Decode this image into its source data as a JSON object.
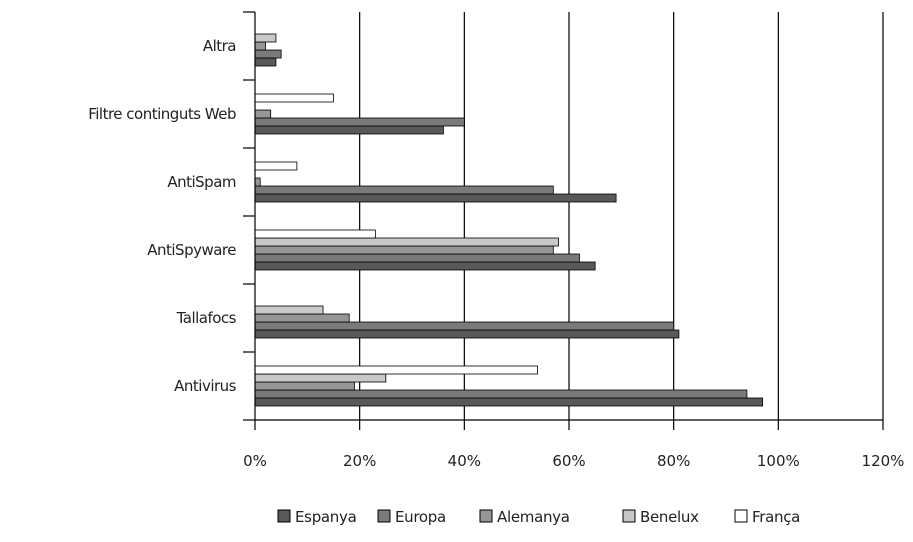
{
  "chart_data": {
    "type": "bar",
    "orientation": "horizontal",
    "title": "",
    "xlabel": "",
    "ylabel": "",
    "categories": [
      "Altra",
      "Filtre continguts Web",
      "AntiSpam",
      "AntiSpyware",
      "Tallafocs",
      "Antivirus"
    ],
    "series": [
      {
        "name": "Espanya",
        "color": "#595959",
        "values": [
          4,
          36,
          69,
          65,
          81,
          97
        ]
      },
      {
        "name": "Europa",
        "color": "#7a7a7a",
        "values": [
          5,
          40,
          57,
          62,
          80,
          94
        ]
      },
      {
        "name": "Alemanya",
        "color": "#969696",
        "values": [
          2,
          3,
          1,
          57,
          18,
          19
        ]
      },
      {
        "name": "Benelux",
        "color": "#c8c8c8",
        "values": [
          4,
          0,
          0,
          58,
          13,
          25
        ]
      },
      {
        "name": "França",
        "color": "#ffffff",
        "values": [
          0,
          15,
          8,
          23,
          0,
          54
        ]
      }
    ],
    "xlim": [
      0,
      120
    ],
    "xticks": [
      0,
      20,
      40,
      60,
      80,
      100,
      120
    ],
    "tick_labels": [
      "0%",
      "20%",
      "40%",
      "60%",
      "80%",
      "100%",
      "120%"
    ],
    "grid": "vertical",
    "legend_position": "bottom"
  }
}
